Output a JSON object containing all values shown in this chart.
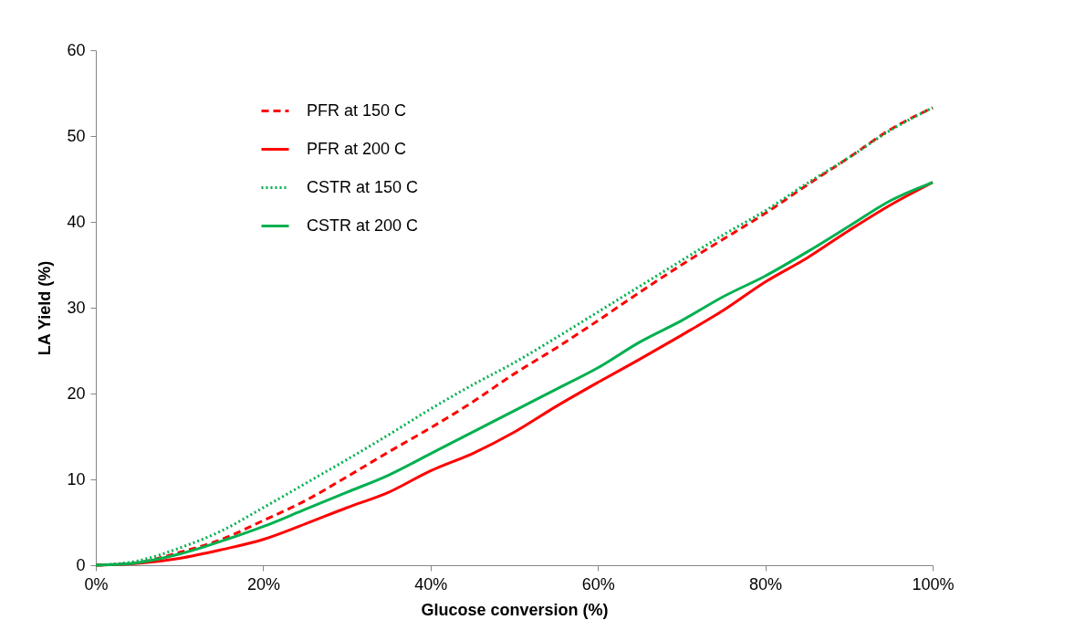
{
  "chart_data": {
    "type": "line",
    "xlabel": "Glucose conversion (%)",
    "ylabel": "LA  Yield (%)",
    "x": [
      0,
      5,
      10,
      15,
      20,
      25,
      30,
      35,
      40,
      45,
      50,
      55,
      60,
      65,
      70,
      75,
      80,
      85,
      90,
      95,
      100
    ],
    "series": [
      {
        "name": "PFR at 150 C",
        "color": "#ff0000",
        "line_style": "dashed",
        "values": [
          0,
          0.3,
          1.5,
          3,
          5.2,
          7.5,
          10.3,
          13.2,
          16,
          19,
          22.3,
          25.3,
          28.5,
          31.8,
          35,
          38,
          41,
          44.3,
          47.5,
          50.8,
          53.3
        ]
      },
      {
        "name": "PFR at 200 C",
        "color": "#ff0000",
        "line_style": "solid",
        "values": [
          0,
          0.2,
          0.8,
          1.8,
          3,
          4.8,
          6.7,
          8.5,
          11,
          13,
          15.5,
          18.5,
          21.3,
          24,
          26.8,
          29.7,
          33,
          35.8,
          39,
          42,
          44.6
        ]
      },
      {
        "name": "CSTR at 150 C",
        "color": "#00b050",
        "line_style": "dotted",
        "values": [
          0,
          0.5,
          2,
          4,
          6.7,
          9.5,
          12.3,
          15.2,
          18.2,
          21,
          23.6,
          26.5,
          29.5,
          32.5,
          35.5,
          38.5,
          41.3,
          44.5,
          47.5,
          50.7,
          53.3
        ]
      },
      {
        "name": "CSTR at 200 C",
        "color": "#00b050",
        "line_style": "solid",
        "values": [
          0,
          0.3,
          1.3,
          2.8,
          4.5,
          6.5,
          8.5,
          10.5,
          13,
          15.5,
          18,
          20.5,
          23,
          26,
          28.5,
          31.3,
          33.7,
          36.5,
          39.5,
          42.5,
          44.6
        ]
      }
    ],
    "xlim": [
      0,
      100
    ],
    "xticks": [
      {
        "value": 0,
        "label": "0%"
      },
      {
        "value": 20,
        "label": "20%"
      },
      {
        "value": 40,
        "label": "40%"
      },
      {
        "value": 60,
        "label": "60%"
      },
      {
        "value": 80,
        "label": "80%"
      },
      {
        "value": 100,
        "label": "100%"
      }
    ],
    "ylim": [
      0,
      60
    ],
    "yticks": [
      0,
      10,
      20,
      30,
      40,
      50,
      60
    ],
    "legend": "top left",
    "grid": false
  }
}
